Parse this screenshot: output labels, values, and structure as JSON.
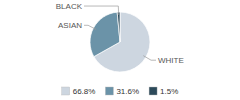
{
  "chart_data": {
    "type": "pie",
    "categories": [
      "WHITE",
      "ASIAN",
      "BLACK"
    ],
    "values": [
      66.8,
      31.6,
      1.5
    ],
    "value_labels": [
      "66.8%",
      "31.6%",
      "1.5%"
    ],
    "colors": [
      "#cdd6e0",
      "#6b93a8",
      "#2c4a5a"
    ],
    "legend": "bottom"
  }
}
